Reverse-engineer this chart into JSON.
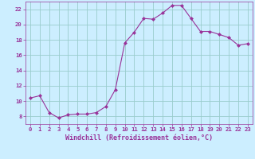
{
  "x": [
    0,
    1,
    2,
    3,
    4,
    5,
    6,
    7,
    8,
    9,
    10,
    11,
    12,
    13,
    14,
    15,
    16,
    17,
    18,
    19,
    20,
    21,
    22,
    23
  ],
  "y": [
    10.4,
    10.7,
    8.5,
    7.8,
    8.2,
    8.3,
    8.3,
    8.5,
    9.3,
    11.5,
    17.6,
    19.0,
    20.8,
    20.7,
    21.5,
    22.5,
    22.5,
    20.8,
    19.1,
    19.1,
    18.7,
    18.3,
    17.3,
    17.5
  ],
  "line_color": "#993399",
  "marker": "D",
  "marker_size": 2.0,
  "bg_color": "#cceeff",
  "grid_color": "#99cccc",
  "xlabel": "Windchill (Refroidissement éolien,°C)",
  "xlim": [
    -0.5,
    23.5
  ],
  "ylim": [
    7,
    23
  ],
  "yticks": [
    8,
    10,
    12,
    14,
    16,
    18,
    20,
    22
  ],
  "xticks": [
    0,
    1,
    2,
    3,
    4,
    5,
    6,
    7,
    8,
    9,
    10,
    11,
    12,
    13,
    14,
    15,
    16,
    17,
    18,
    19,
    20,
    21,
    22,
    23
  ],
  "tick_color": "#993399",
  "tick_fontsize": 5.2,
  "xlabel_fontsize": 6.0,
  "spine_color": "#993399",
  "line_width": 0.8
}
